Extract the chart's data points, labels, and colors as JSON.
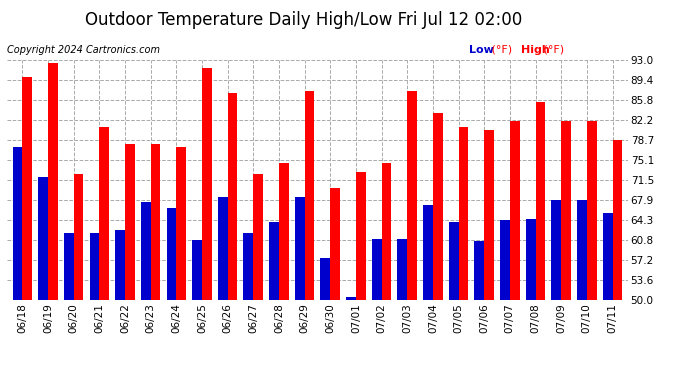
{
  "title": "Outdoor Temperature Daily High/Low Fri Jul 12 02:00",
  "copyright": "Copyright 2024 Cartronics.com",
  "legend_low": "Low",
  "legend_high": "High",
  "legend_unit": "(°F)",
  "ylabel_right_values": [
    93.0,
    89.4,
    85.8,
    82.2,
    78.7,
    75.1,
    71.5,
    67.9,
    64.3,
    60.8,
    57.2,
    53.6,
    50.0
  ],
  "categories": [
    "06/18",
    "06/19",
    "06/20",
    "06/21",
    "06/22",
    "06/23",
    "06/24",
    "06/25",
    "06/26",
    "06/27",
    "06/28",
    "06/29",
    "06/30",
    "07/01",
    "07/02",
    "07/03",
    "07/04",
    "07/05",
    "07/06",
    "07/07",
    "07/08",
    "07/09",
    "07/10",
    "07/11"
  ],
  "high_values": [
    90.0,
    92.5,
    72.5,
    81.0,
    78.0,
    78.0,
    77.5,
    91.5,
    87.0,
    72.5,
    74.5,
    87.5,
    70.0,
    73.0,
    74.5,
    87.5,
    83.5,
    81.0,
    80.5,
    82.0,
    85.5,
    82.0,
    82.0,
    78.7
  ],
  "low_values": [
    77.5,
    72.0,
    62.0,
    62.0,
    62.5,
    67.5,
    66.5,
    60.8,
    68.5,
    62.0,
    64.0,
    68.5,
    57.5,
    50.5,
    61.0,
    61.0,
    67.0,
    64.0,
    60.5,
    64.3,
    64.5,
    68.0,
    67.9,
    65.5
  ],
  "bar_color_high": "#ff0000",
  "bar_color_low": "#0000cc",
  "background_color": "#ffffff",
  "grid_color": "#aaaaaa",
  "title_color": "#000000",
  "copyright_color": "#000000",
  "legend_low_color": "#0000cc",
  "legend_high_color": "#ff0000",
  "ymin": 50.0,
  "ymax": 93.0,
  "bar_width": 0.38,
  "title_fontsize": 12,
  "tick_fontsize": 7.5,
  "copyright_fontsize": 7,
  "legend_fontsize": 8
}
